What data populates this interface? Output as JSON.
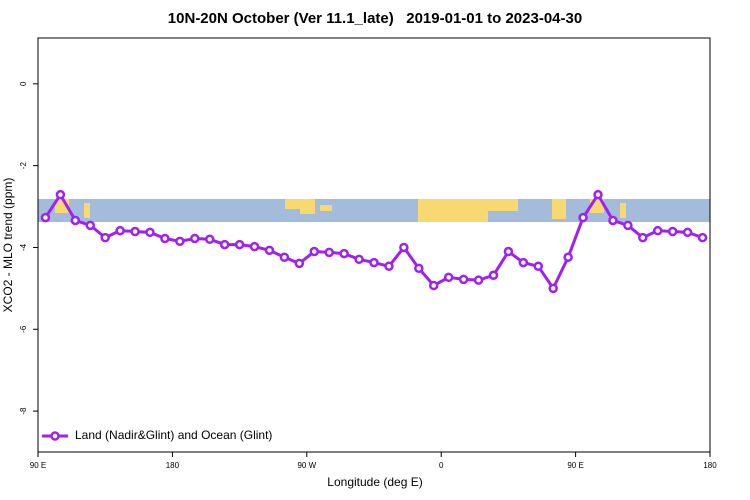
{
  "chart_data": {
    "type": "line",
    "title": "10N-20N October (Ver 11.1_late)   2019-01-01 to 2023-04-30",
    "x_label": "Longitude (deg E)",
    "y_label": "XCO2 - MLO trend (ppm)",
    "x": [
      95,
      105,
      115,
      125,
      135,
      145,
      155,
      165,
      175,
      185,
      195,
      205,
      215,
      225,
      235,
      245,
      255,
      265,
      275,
      285,
      295,
      305,
      315,
      325,
      335,
      345,
      355,
      365,
      375,
      385,
      395,
      405,
      415,
      425,
      435,
      445,
      455,
      465,
      475,
      485,
      495,
      505,
      515,
      525,
      535
    ],
    "series": [
      {
        "name": "Land (Nadir&Glint) and Ocean (Glint)",
        "color": "#a020f0",
        "values": [
          -3.27,
          -2.71,
          -3.34,
          -3.46,
          -3.76,
          -3.59,
          -3.61,
          -3.63,
          -3.78,
          -3.85,
          -3.78,
          -3.8,
          -3.93,
          -3.93,
          -3.98,
          -4.07,
          -4.24,
          -4.39,
          -4.1,
          -4.12,
          -4.15,
          -4.29,
          -4.37,
          -4.46,
          -4.0,
          -4.51,
          -4.93,
          -4.73,
          -4.78,
          -4.8,
          -4.68,
          -4.1,
          -4.37,
          -4.46,
          -5.0,
          -4.24,
          -3.27,
          -2.71,
          -3.34,
          -3.46,
          -3.76,
          -3.59,
          -3.61,
          -3.63,
          -3.76
        ]
      }
    ],
    "xlim": [
      90,
      540
    ],
    "xticks": [
      {
        "value": 90,
        "label": "90 E"
      },
      {
        "value": 180,
        "label": "180"
      },
      {
        "value": 270,
        "label": "90 W"
      },
      {
        "value": 360,
        "label": "0"
      },
      {
        "value": 450,
        "label": "90 E"
      },
      {
        "value": 540,
        "label": "180"
      }
    ],
    "ylim": [
      -9,
      1.12
    ],
    "yticks": [
      0,
      -2,
      -4,
      -6,
      -8
    ],
    "grid": false,
    "legend": "bottom-left"
  }
}
